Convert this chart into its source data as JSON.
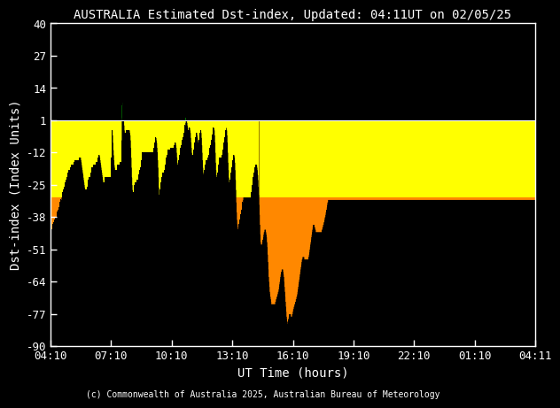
{
  "title": "AUSTRALIA Estimated Dst-index, Updated: 04:11UT on 02/05/25",
  "xlabel": "UT Time (hours)",
  "ylabel": "Dst-index (Index Units)",
  "copyright": "(c) Commonwealth of Australia 2025, Australian Bureau of Meteorology",
  "bg_color": "#000000",
  "text_color": "#ffffff",
  "ylim": [
    -90,
    40
  ],
  "yticks": [
    -90,
    -77,
    -64,
    -51,
    -38,
    -25,
    -12,
    1,
    14,
    27,
    40
  ],
  "xtick_labels": [
    "04:10",
    "07:10",
    "10:10",
    "13:10",
    "16:10",
    "19:10",
    "22:10",
    "01:10",
    "04:11"
  ],
  "color_yellow": "#ffff00",
  "color_orange": "#ff8800",
  "color_green": "#006600",
  "dst_values": [
    -42,
    -42,
    -43,
    -43,
    -43,
    -42,
    -42,
    -41,
    -40,
    -40,
    -40,
    -39,
    -39,
    -38,
    -38,
    -38,
    -38,
    -38,
    -37,
    -37,
    -36,
    -36,
    -35,
    -35,
    -34,
    -34,
    -33,
    -33,
    -32,
    -32,
    -31,
    -31,
    -30,
    -30,
    -29,
    -29,
    -28,
    -28,
    -27,
    -27,
    -26,
    -26,
    -25,
    -25,
    -24,
    -24,
    -23,
    -23,
    -22,
    -22,
    -21,
    -21,
    -20,
    -20,
    -19,
    -19,
    -19,
    -19,
    -19,
    -18,
    -18,
    -18,
    -17,
    -17,
    -17,
    -17,
    -17,
    -17,
    -17,
    -17,
    -16,
    -16,
    -16,
    -15,
    -15,
    -15,
    -15,
    -15,
    -15,
    -15,
    -15,
    -15,
    -15,
    -15,
    -15,
    -14,
    -14,
    -14,
    -14,
    -14,
    -15,
    -16,
    -17,
    -18,
    -19,
    -20,
    -21,
    -22,
    -23,
    -24,
    -25,
    -26,
    -27,
    -27,
    -27,
    -27,
    -27,
    -27,
    -26,
    -26,
    -25,
    -24,
    -23,
    -22,
    -22,
    -22,
    -22,
    -22,
    -21,
    -21,
    -20,
    -19,
    -19,
    -18,
    -18,
    -18,
    -17,
    -17,
    -17,
    -17,
    -17,
    -17,
    -17,
    -17,
    -17,
    -17,
    -16,
    -16,
    -16,
    -15,
    -15,
    -14,
    -14,
    -13,
    -13,
    -13,
    -14,
    -15,
    -16,
    -17,
    -18,
    -19,
    -20,
    -21,
    -22,
    -23,
    -24,
    -24,
    -24,
    -24,
    -23,
    -23,
    -22,
    -22,
    -22,
    -22,
    -22,
    -22,
    -22,
    -22,
    -22,
    -22,
    -22,
    -22,
    -22,
    -22,
    -22,
    -22,
    -22,
    -22,
    -14,
    -8,
    -4,
    -3,
    -5,
    -8,
    -11,
    -13,
    -15,
    -17,
    -18,
    -19,
    -20,
    -20,
    -19,
    -19,
    -19,
    -18,
    -17,
    -17,
    -17,
    -17,
    -17,
    -17,
    -17,
    -16,
    -16,
    -16,
    -16,
    -16,
    -7,
    2,
    7,
    10,
    10,
    8,
    5,
    2,
    -1,
    -3,
    -4,
    -5,
    -5,
    -4,
    -3,
    -3,
    -3,
    -3,
    -3,
    -3,
    -3,
    -3,
    -3,
    -3,
    -3,
    -4,
    -5,
    -7,
    -10,
    -14,
    -18,
    -22,
    -25,
    -27,
    -28,
    -28,
    -28,
    -27,
    -26,
    -25,
    -25,
    -24,
    -24,
    -24,
    -24,
    -24,
    -23,
    -23,
    -23,
    -23,
    -23,
    -22,
    -21,
    -21,
    -20,
    -19,
    -19,
    -18,
    -17,
    -16,
    -15,
    -14,
    -13,
    -12,
    -12,
    -12,
    -12,
    -12,
    -12,
    -12,
    -12,
    -12,
    -12,
    -12,
    -12,
    -12,
    -12,
    -12,
    -12,
    -12,
    -12,
    -12,
    -12,
    -12,
    -12,
    -12,
    -12,
    -12,
    -12,
    -12,
    -12,
    -12,
    -12,
    -12,
    -12,
    -12,
    -11,
    -10,
    -9,
    -8,
    -8,
    -7,
    -6,
    -6,
    -7,
    -8,
    -10,
    -12,
    -15,
    -18,
    -22,
    -26,
    -29,
    -29,
    -28,
    -27,
    -26,
    -25,
    -24,
    -23,
    -22,
    -21,
    -20,
    -20,
    -20,
    -20,
    -20,
    -19,
    -19,
    -18,
    -18,
    -17,
    -16,
    -15,
    -14,
    -13,
    -13,
    -12,
    -12,
    -11,
    -11,
    -11,
    -11,
    -11,
    -11,
    -11,
    -11,
    -10,
    -10,
    -10,
    -10,
    -10,
    -10,
    -10,
    -10,
    -10,
    -10,
    -9,
    -9,
    -8,
    -8,
    -8,
    -9,
    -10,
    -12,
    -14,
    -16,
    -17,
    -17,
    -16,
    -15,
    -14,
    -14,
    -13,
    -12,
    -11,
    -10,
    -10,
    -9,
    -8,
    -7,
    -7,
    -7,
    -7,
    -6,
    -5,
    -4,
    -3,
    -2,
    -1,
    0,
    1,
    2,
    2,
    1,
    0,
    -1,
    -2,
    -3,
    -3,
    -3,
    -2,
    -2,
    -2,
    -3,
    -4,
    -6,
    -8,
    -10,
    -12,
    -13,
    -13,
    -13,
    -13,
    -12,
    -11,
    -10,
    -9,
    -8,
    -7,
    -6,
    -5,
    -4,
    -4,
    -4,
    -5,
    -6,
    -7,
    -8,
    -8,
    -8,
    -7,
    -6,
    -5,
    -4,
    -3,
    -3,
    -4,
    -6,
    -9,
    -12,
    -15,
    -18,
    -20,
    -21,
    -21,
    -20,
    -19,
    -18,
    -17,
    -16,
    -15,
    -15,
    -15,
    -15,
    -15,
    -15,
    -14,
    -14,
    -13,
    -13,
    -12,
    -11,
    -10,
    -9,
    -9,
    -8,
    -8,
    -7,
    -6,
    -5,
    -4,
    -3,
    -2,
    -2,
    -2,
    -3,
    -5,
    -8,
    -12,
    -16,
    -19,
    -21,
    -22,
    -22,
    -21,
    -20,
    -19,
    -18,
    -17,
    -16,
    -15,
    -14,
    -14,
    -14,
    -14,
    -14,
    -14,
    -13,
    -13,
    -12,
    -12,
    -11,
    -10,
    -9,
    -8,
    -7,
    -6,
    -5,
    -4,
    -3,
    -2,
    -2,
    -3,
    -5,
    -8,
    -12,
    -16,
    -19,
    -22,
    -24,
    -25,
    -24,
    -23,
    -22,
    -21,
    -20,
    -19,
    -18,
    -17,
    -16,
    -15,
    -14,
    -13,
    -13,
    -13,
    -14,
    -16,
    -19,
    -23,
    -27,
    -32,
    -36,
    -39,
    -41,
    -42,
    -43,
    -43,
    -42,
    -41,
    -41,
    -40,
    -39,
    -38,
    -37,
    -37,
    -36,
    -35,
    -34,
    -33,
    -32,
    -31,
    -30,
    -30,
    -30,
    -30,
    -30,
    -30,
    -30,
    -30,
    -30,
    -30,
    -30,
    -30,
    -30,
    -30,
    -30,
    -30,
    -30,
    -30,
    -30,
    -30,
    -30,
    -30,
    -30,
    -29,
    -28,
    -27,
    -26,
    -25,
    -24,
    -23,
    -22,
    -21,
    -20,
    -19,
    -18,
    -18,
    -17,
    -17,
    -17,
    -17,
    -17,
    -18,
    -19,
    -21,
    -23,
    -26,
    -29,
    -33,
    -37,
    -41,
    -45,
    -48,
    -49,
    -49,
    -49,
    -49,
    -48,
    -47,
    -47,
    -46,
    -45,
    -44,
    -44,
    -43,
    -43,
    -43,
    -43,
    -44,
    -45,
    -46,
    -48,
    -50,
    -53,
    -56,
    -59,
    -62,
    -64,
    -66,
    -68,
    -69,
    -70,
    -71,
    -72,
    -73,
    -73,
    -73,
    -73,
    -73,
    -73,
    -73,
    -73,
    -73,
    -73,
    -73,
    -73,
    -72,
    -72,
    -71,
    -71,
    -70,
    -70,
    -69,
    -69,
    -68,
    -68,
    -67,
    -66,
    -65,
    -64,
    -63,
    -62,
    -61,
    -60,
    -60,
    -59,
    -59,
    -59,
    -59,
    -60,
    -61,
    -62,
    -64,
    -66,
    -68,
    -70,
    -72,
    -74,
    -76,
    -78,
    -79,
    -80,
    -81,
    -80,
    -79,
    -79,
    -78,
    -77,
    -77,
    -77,
    -77,
    -77,
    -78,
    -78,
    -78,
    -78,
    -77,
    -77,
    -76,
    -75,
    -75,
    -74,
    -74,
    -73,
    -73,
    -72,
    -72,
    -71,
    -71,
    -70,
    -70,
    -69,
    -68,
    -67,
    -66,
    -65,
    -64,
    -63,
    -62,
    -61,
    -60,
    -59,
    -58,
    -57,
    -56,
    -55,
    -55,
    -54,
    -54,
    -54,
    -54,
    -54,
    -55,
    -55,
    -55,
    -55,
    -55,
    -55,
    -55,
    -55,
    -55,
    -55,
    -55,
    -55,
    -54,
    -54,
    -53,
    -52,
    -51,
    -50,
    -49,
    -48,
    -47,
    -46,
    -45,
    -44,
    -43,
    -42,
    -41,
    -41,
    -41,
    -41,
    -42,
    -42,
    -43,
    -43,
    -44,
    -44,
    -44,
    -44,
    -44,
    -44,
    -44,
    -44,
    -44,
    -44,
    -44,
    -44,
    -44,
    -44,
    -44,
    -44,
    -44,
    -44,
    -43,
    -43,
    -42,
    -42,
    -41,
    -41,
    -40,
    -40,
    -39,
    -38,
    -38,
    -37,
    -36,
    -35,
    -35,
    -34,
    -33,
    -32,
    -32,
    -31,
    -31,
    -31,
    -31,
    -31,
    -31,
    -31,
    -31,
    -31,
    -31,
    -31,
    -31,
    -31,
    -31,
    -31,
    -31,
    -31,
    -31,
    -31,
    -31,
    -31,
    -31,
    -31,
    -31,
    -31,
    -31,
    -31,
    -31,
    -31,
    -31,
    -31,
    -31,
    -31,
    -31,
    -31,
    -31,
    -31,
    -31,
    -31,
    -31,
    -31,
    -31,
    -31,
    -31,
    -31,
    -31,
    -31,
    -31,
    -31,
    -31,
    -31,
    -31,
    -31,
    -31,
    -31,
    -31,
    -31,
    -31,
    -31,
    -31,
    -31,
    -31,
    -31,
    -31,
    -31,
    -31,
    -31,
    -31,
    -31,
    -31,
    -31,
    -31,
    -31,
    -31,
    -31,
    -31,
    -31,
    -31,
    -31,
    -31,
    -31,
    -31,
    -31,
    -31,
    -31,
    -31,
    -31,
    -31,
    -31,
    -31,
    -31,
    -31,
    -31,
    -31,
    -31,
    -31,
    -31,
    -31,
    -31,
    -31,
    -31,
    -31,
    -31,
    -31,
    -31,
    -31,
    -31,
    -31,
    -31,
    -31,
    -31,
    -31,
    -31,
    -31,
    -31,
    -31,
    -31,
    -31,
    -31,
    -31,
    -31,
    -31,
    -31,
    -31,
    -31,
    -31,
    -31,
    -31,
    -31,
    -31,
    -31,
    -31,
    -31,
    -31,
    -31,
    -31,
    -31,
    -31,
    -31,
    -31,
    -31,
    -31,
    -31,
    -31,
    -31,
    -31,
    -31,
    -31,
    -31,
    -31,
    -31,
    -31,
    -31,
    -31,
    -31,
    -31,
    -31,
    -31,
    -31,
    -31,
    -31,
    -31,
    -31,
    -31,
    -31,
    -31,
    -31,
    -31,
    -31,
    -31,
    -31,
    -31,
    -31,
    -31,
    -31,
    -31,
    -31,
    -31,
    -31,
    -31,
    -31,
    -31,
    -31,
    -31,
    -31,
    -31,
    -31,
    -31,
    -31,
    -31,
    -31,
    -31,
    -31,
    -31,
    -31,
    -31,
    -31,
    -31,
    -31,
    -31,
    -31,
    -31,
    -31,
    -31,
    -31,
    -31,
    -31,
    -31,
    -31,
    -31,
    -31,
    -31,
    -31,
    -31,
    -31,
    -31,
    -31,
    -31,
    -31,
    -31,
    -31,
    -31,
    -31,
    -31,
    -31,
    -31,
    -31,
    -31,
    -31,
    -31,
    -31,
    -31,
    -31,
    -31,
    -31,
    -31,
    -31,
    -31,
    -31,
    -31,
    -31,
    -31,
    -31,
    -31,
    -31,
    -31,
    -31,
    -31,
    -31,
    -31,
    -31,
    -31,
    -31,
    -31,
    -31,
    -31,
    -31,
    -31,
    -31,
    -31,
    -31,
    -31,
    -31,
    -31,
    -31,
    -31,
    -31,
    -31,
    -31,
    -31,
    -31,
    -31,
    -31,
    -31,
    -31,
    -31,
    -31,
    -31,
    -31,
    -31,
    -31,
    -31,
    -31,
    -31,
    -31,
    -31,
    -31,
    -31,
    -31,
    -31,
    -31,
    -31,
    -31,
    -31,
    -31,
    -31,
    -31,
    -31,
    -31,
    -31,
    -31,
    -31,
    -31,
    -31,
    -31,
    -31,
    -31,
    -31,
    -31,
    -31,
    -31,
    -31,
    -31,
    -31,
    -31,
    -31,
    -31,
    -31,
    -31,
    -31,
    -31,
    -31,
    -31,
    -31,
    -31,
    -31,
    -31,
    -31,
    -31,
    -31,
    -31,
    -31,
    -31,
    -31,
    -31,
    -31,
    -31,
    -31,
    -31,
    -31,
    -31,
    -31,
    -31,
    -31,
    -31,
    -31,
    -31,
    -31,
    -31,
    -31,
    -31,
    -31,
    -31,
    -31,
    -31,
    -31,
    -31,
    -31,
    -31,
    -31,
    -31,
    -31,
    -31,
    -31,
    -31,
    -31,
    -31,
    -31,
    -31,
    -31,
    -31,
    -31,
    -31,
    -31,
    -31,
    -31,
    -31,
    -31,
    -31,
    -31,
    -31,
    -31,
    -31,
    -31,
    -31,
    -31,
    -31,
    -31,
    -31,
    -31,
    -31,
    -31,
    -31,
    -31,
    -31,
    -31,
    -31,
    -31,
    -31,
    -31,
    -31,
    -31,
    -31,
    -31,
    -31,
    -31,
    -31,
    -31,
    -31,
    -31,
    -31,
    -31,
    -31,
    -31,
    -31,
    -31,
    -31,
    -31,
    -31,
    -31,
    -31,
    -31,
    -31,
    -31,
    -31,
    -31,
    -31,
    -31,
    -31,
    -31,
    -31,
    -31,
    -31,
    -31,
    -31,
    -31
  ]
}
